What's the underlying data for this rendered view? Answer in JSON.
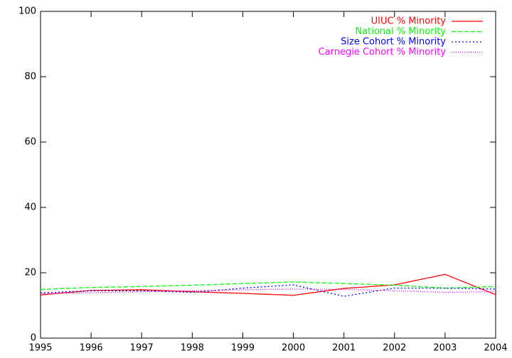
{
  "chart_data": {
    "type": "line",
    "x": [
      1995,
      1996,
      1997,
      1998,
      1999,
      2000,
      2001,
      2002,
      2003,
      2004
    ],
    "xlim": [
      1995,
      2004
    ],
    "xticks": [
      1995,
      1996,
      1997,
      1998,
      1999,
      2000,
      2001,
      2002,
      2003,
      2004
    ],
    "ylim": [
      0,
      100
    ],
    "yticks": [
      0,
      20,
      40,
      60,
      80,
      100
    ],
    "grid": false,
    "legend": "top-right",
    "series": [
      {
        "name": "UIUC % Minority",
        "color": "#ff0000",
        "style": "solid",
        "values": [
          13.2,
          14.6,
          14.8,
          14.2,
          13.7,
          13.1,
          15.2,
          16.3,
          19.5,
          13.3
        ]
      },
      {
        "name": "National % Minority",
        "color": "#00ff00",
        "style": "dashed",
        "values": [
          14.9,
          15.5,
          15.8,
          16.2,
          16.7,
          17.2,
          16.7,
          16.2,
          15.3,
          15.8
        ]
      },
      {
        "name": "Size Cohort % Minority",
        "color": "#0000ff",
        "style": "dotted",
        "values": [
          13.8,
          14.5,
          14.5,
          14.0,
          15.3,
          16.3,
          12.8,
          15.3,
          15.3,
          15.0
        ]
      },
      {
        "name": "Carnegie Cohort % Minority",
        "color": "#ff00ff",
        "style": "fine-dotted",
        "values": [
          13.6,
          13.9,
          14.2,
          14.5,
          14.8,
          15.0,
          14.9,
          14.5,
          14.0,
          14.2
        ]
      }
    ]
  }
}
